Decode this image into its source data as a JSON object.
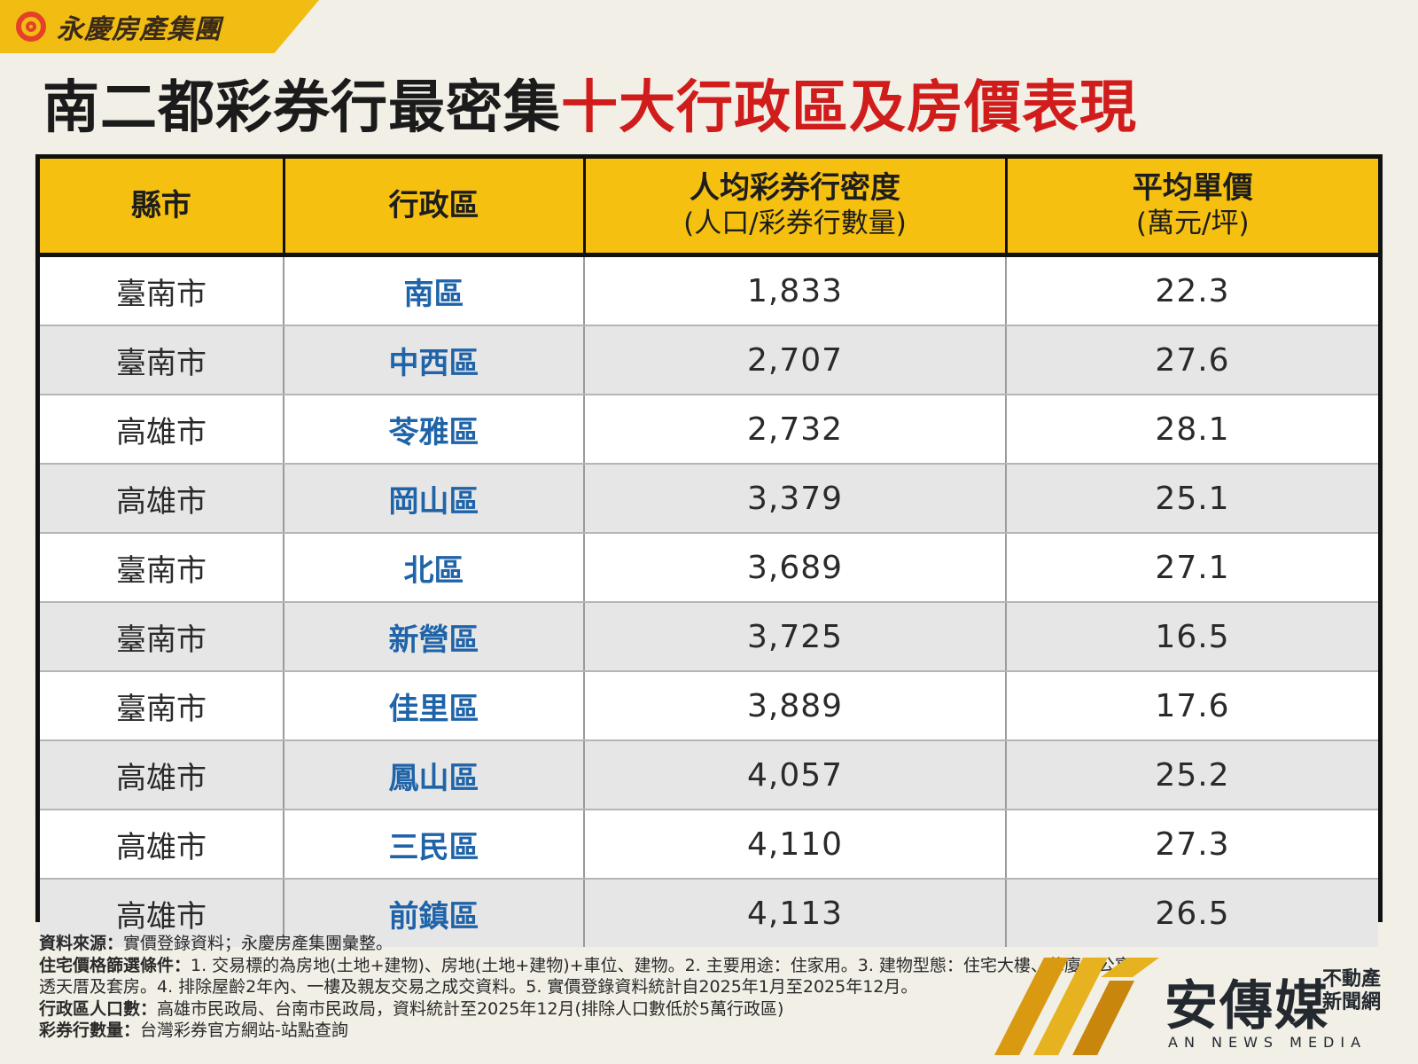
{
  "brand": {
    "name": "永慶房產集團"
  },
  "headline": {
    "part1": "南二都彩券行最密集",
    "part2": "十大行政區及房價表現"
  },
  "colors": {
    "header_bg": "#f5c010",
    "headline_red": "#d11c1c",
    "district_blue": "#1f63a8",
    "page_bg": "#f1efe6"
  },
  "table": {
    "headers": [
      {
        "title": "縣市",
        "sub": ""
      },
      {
        "title": "行政區",
        "sub": ""
      },
      {
        "title": "人均彩券行密度",
        "sub": "(人口/彩券行數量)"
      },
      {
        "title": "平均單價",
        "sub": "(萬元/坪)"
      }
    ],
    "rows": [
      {
        "city": "臺南市",
        "district": "南區",
        "density": "1,833",
        "price": "22.3"
      },
      {
        "city": "臺南市",
        "district": "中西區",
        "density": "2,707",
        "price": "27.6"
      },
      {
        "city": "高雄市",
        "district": "苓雅區",
        "density": "2,732",
        "price": "28.1"
      },
      {
        "city": "高雄市",
        "district": "岡山區",
        "density": "3,379",
        "price": "25.1"
      },
      {
        "city": "臺南市",
        "district": "北區",
        "density": "3,689",
        "price": "27.1"
      },
      {
        "city": "臺南市",
        "district": "新營區",
        "density": "3,725",
        "price": "16.5"
      },
      {
        "city": "臺南市",
        "district": "佳里區",
        "density": "3,889",
        "price": "17.6"
      },
      {
        "city": "高雄市",
        "district": "鳳山區",
        "density": "4,057",
        "price": "25.2"
      },
      {
        "city": "高雄市",
        "district": "三民區",
        "density": "4,110",
        "price": "27.3"
      },
      {
        "city": "高雄市",
        "district": "前鎮區",
        "density": "4,113",
        "price": "26.5"
      }
    ]
  },
  "footnotes": [
    {
      "label": "資料來源：",
      "text": "實價登錄資料；永慶房產集團彙整。"
    },
    {
      "label": "住宅價格篩選條件：",
      "text": "1. 交易標的為房地(土地+建物)、房地(土地+建物)+車位、建物。2. 主要用途：住家用。3. 建物型態：住宅大樓、華廈、公寓、"
    },
    {
      "label": "",
      "text": "透天厝及套房。4. 排除屋齡2年內、一樓及親友交易之成交資料。5. 實價登錄資料統計自2025年1月至2025年12月。"
    },
    {
      "label": "行政區人口數：",
      "text": "高雄市民政局、台南市民政局，資料統計至2025年12月(排除人口數低於5萬行政區)"
    },
    {
      "label": "彩券行數量：",
      "text": "台灣彩券官方網站-站點查詢"
    }
  ],
  "watermark": {
    "name": "安傳媒",
    "side1": "不動產",
    "side2": "新聞網",
    "en": "AN NEWS MEDIA"
  }
}
